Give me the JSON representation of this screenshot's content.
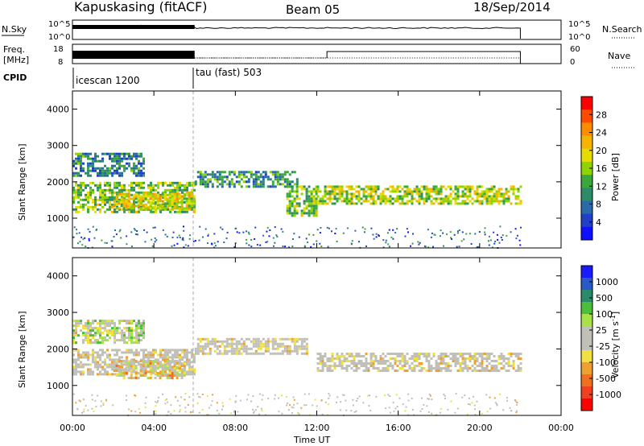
{
  "header": {
    "station": "Kapuskasing (fitACF)",
    "beam": "Beam 05",
    "date": "18/Sep/2014"
  },
  "panels": {
    "nsky": {
      "label": "N.Sky",
      "right_label": "N.Search",
      "tick_top": "10^5",
      "tick_bottom": "10^0",
      "rtick_top": "10^5",
      "rtick_bottom": "10^0"
    },
    "freq": {
      "label_line1": "Freq.",
      "label_line2": "[MHz]",
      "right_label": "Nave",
      "tick_top": "18",
      "tick_bottom": "8",
      "rtick_top": "60",
      "rtick_bottom": "0"
    },
    "cpid": {
      "label": "CPID",
      "modes": [
        "icescan 1200",
        "tau (fast) 503"
      ]
    }
  },
  "axes": {
    "ylabel": "Slant Range [km]",
    "xlabel": "Time UT",
    "yticks": [
      "1000",
      "2000",
      "3000",
      "4000"
    ],
    "xticks": [
      "00:00",
      "04:00",
      "08:00",
      "12:00",
      "16:00",
      "20:00",
      "00:00"
    ]
  },
  "power_scale": {
    "label": "Power [dB]",
    "ticks": [
      "28",
      "24",
      "20",
      "16",
      "12",
      "8",
      "4"
    ],
    "colors": [
      "#ff0000",
      "#ff4a00",
      "#ff8c00",
      "#f5b400",
      "#e6dc00",
      "#8fd400",
      "#3aa83a",
      "#2e8b6a",
      "#2a6aa8",
      "#2040c8",
      "#1010ff"
    ]
  },
  "velocity_scale": {
    "label": "Velocity [m s-1]",
    "ticks": [
      "1000",
      "500",
      "100",
      "25",
      "-25",
      "-100",
      "-500",
      "-1000"
    ],
    "colors": [
      "#1a1aff",
      "#2a5ac8",
      "#2a8a6a",
      "#4cbf3a",
      "#a8e04a",
      "#c0c0b8",
      "#c0c0b8",
      "#f0e040",
      "#f0a030",
      "#f07020",
      "#f04020",
      "#ff0000"
    ]
  },
  "chart_data": [
    {
      "type": "heatmap",
      "title": "Power",
      "xlabel": "Time UT",
      "ylabel": "Slant Range [km]",
      "xlim": [
        0,
        24
      ],
      "ylim": [
        180,
        4500
      ],
      "colorbar": {
        "label": "Power [dB]",
        "range": [
          0,
          30
        ]
      },
      "echo_regions": [
        {
          "t_start": 0.0,
          "t_end": 6.0,
          "range_low": 1200,
          "range_high": 2000,
          "level": 14
        },
        {
          "t_start": 0.0,
          "t_end": 3.5,
          "range_low": 2200,
          "range_high": 2800,
          "level": 8
        },
        {
          "t_start": 2.0,
          "t_end": 6.0,
          "range_low": 1300,
          "range_high": 1700,
          "level": 18
        },
        {
          "t_start": 6.0,
          "t_end": 11.0,
          "range_low": 1900,
          "range_high": 2300,
          "level": 10
        },
        {
          "t_start": 10.5,
          "t_end": 12.0,
          "range_low": 1100,
          "range_high": 1900,
          "level": 14
        },
        {
          "t_start": 12.0,
          "t_end": 22.0,
          "range_low": 1400,
          "range_high": 1900,
          "level": 16
        }
      ]
    },
    {
      "type": "heatmap",
      "title": "Velocity",
      "xlabel": "Time UT",
      "ylabel": "Slant Range [km]",
      "xlim": [
        0,
        24
      ],
      "ylim": [
        180,
        4500
      ],
      "colorbar": {
        "label": "Velocity [m s-1]",
        "range": [
          -1000,
          1000
        ]
      },
      "echo_regions": [
        {
          "t_start": 0.0,
          "t_end": 6.0,
          "range_low": 1300,
          "range_high": 2000,
          "level": 0
        },
        {
          "t_start": 2.0,
          "t_end": 5.5,
          "range_low": 1200,
          "range_high": 1700,
          "level": -150
        },
        {
          "t_start": 0.0,
          "t_end": 3.5,
          "range_low": 2200,
          "range_high": 2800,
          "level": 80
        },
        {
          "t_start": 6.0,
          "t_end": 11.5,
          "range_low": 1900,
          "range_high": 2300,
          "level": 0
        },
        {
          "t_start": 12.0,
          "t_end": 22.0,
          "range_low": 1400,
          "range_high": 1900,
          "level": 0
        }
      ]
    }
  ]
}
